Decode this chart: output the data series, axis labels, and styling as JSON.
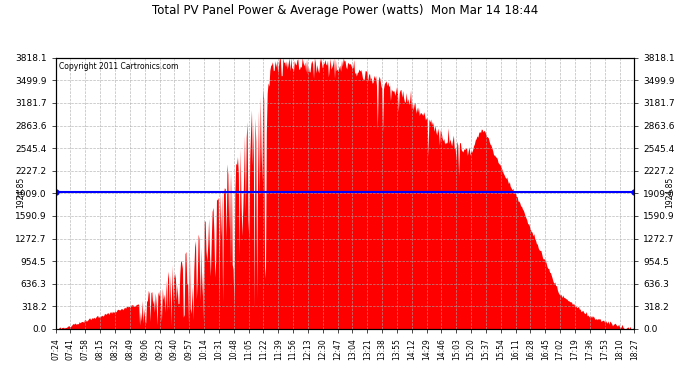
{
  "title": "Total PV Panel Power & Average Power (watts)  Mon Mar 14 18:44",
  "copyright": "Copyright 2011 Cartronics.com",
  "average_power": 1924.85,
  "y_max": 3818.1,
  "y_min": 0.0,
  "y_ticks": [
    0.0,
    318.2,
    636.3,
    954.5,
    1272.7,
    1590.9,
    1909.0,
    2227.2,
    2545.4,
    2863.6,
    3181.7,
    3499.9,
    3818.1
  ],
  "bar_color": "#FF0000",
  "line_color": "#0000FF",
  "background_color": "#FFFFFF",
  "grid_color": "#AAAAAA",
  "x_labels": [
    "07:24",
    "07:41",
    "07:58",
    "08:15",
    "08:32",
    "08:49",
    "09:06",
    "09:23",
    "09:40",
    "09:57",
    "10:14",
    "10:31",
    "10:48",
    "11:05",
    "11:22",
    "11:39",
    "11:56",
    "12:13",
    "12:30",
    "12:47",
    "13:04",
    "13:21",
    "13:38",
    "13:55",
    "14:12",
    "14:29",
    "14:46",
    "15:03",
    "15:20",
    "15:37",
    "15:54",
    "16:11",
    "16:28",
    "16:45",
    "17:02",
    "17:19",
    "17:36",
    "17:53",
    "18:10",
    "18:27"
  ]
}
